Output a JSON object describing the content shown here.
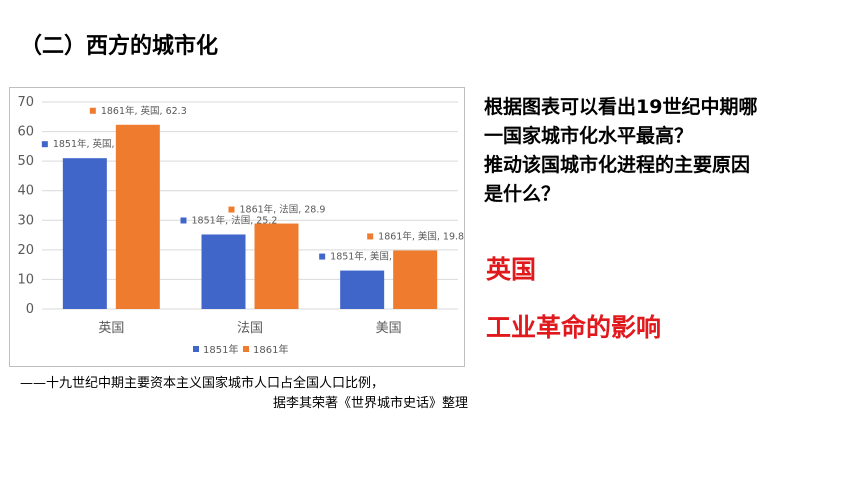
{
  "slide": {
    "title": "（二）西方的城市化",
    "caption_line1": "——十九世纪中期主要资本主义国家城市人口占全国人口比例，",
    "caption_line2": "据李其荣著《世界城市史话》整理",
    "question_line1": "根据图表可以看出19世纪中期哪",
    "question_line2": "一国家城市化水平最高？",
    "question_line3": "推动该国城市化进程的主要原因",
    "question_line4": "是什么？",
    "answer1": "英国",
    "answer2": "工业革命的影响"
  },
  "chart_data": {
    "type": "bar",
    "categories": [
      "英国",
      "法国",
      "美国"
    ],
    "series": [
      {
        "name": "1851年",
        "values": [
          51,
          25.2,
          13
        ],
        "color": "#3f66c8"
      },
      {
        "name": "1861年",
        "values": [
          62.3,
          28.9,
          19.8
        ],
        "color": "#ef7c2e"
      }
    ],
    "data_labels": [
      [
        "1851年, 英国, 51",
        "1851年, 法国, 25.2",
        "1851年, 美国, 13"
      ],
      [
        "1861年, 英国, 62.3",
        "1861年, 法国, 28.9",
        "1861年, 美国, 19.8"
      ]
    ],
    "ylim": [
      0,
      70
    ],
    "yticks": [
      0,
      10,
      20,
      30,
      40,
      50,
      60,
      70
    ],
    "grid": true,
    "legend_position": "bottom"
  }
}
